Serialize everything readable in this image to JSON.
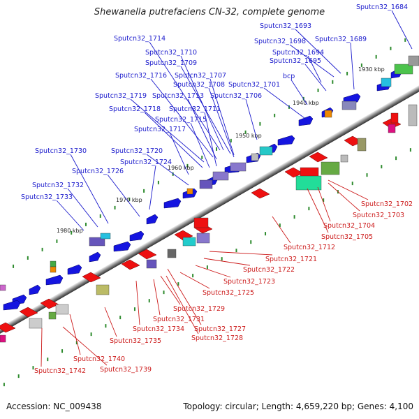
{
  "title": "Shewanella putrefaciens CN-32, complete genome",
  "footer": {
    "accession": "Accession: NC_009438",
    "summary": "Topology: circular; Length: 4,659,220 bp; Genes: 4,100"
  },
  "ticks": [
    "1930 kbp",
    "1940 kbp",
    "1950 kbp",
    "1960 kbp",
    "1970 kbp",
    "1980 kbp"
  ],
  "labels_forward": [
    "Sputcn32_1684",
    "Sputcn32_1693",
    "Sputcn32_1689",
    "Sputcn32_1698",
    "Sputcn32_1694",
    "Sputcn32_1695",
    "Sputcn32_1714",
    "Sputcn32_1710",
    "Sputcn32_1709",
    "Sputcn32_1716",
    "Sputcn32_1707",
    "Sputcn32_1708",
    "Sputcn32_1701",
    "Sputcn32_1719",
    "Sputcn32_1713",
    "Sputcn32_1706",
    "bcp",
    "Sputcn32_1718",
    "Sputcn32_1711",
    "Sputcn32_1715",
    "Sputcn32_1717",
    "Sputcn32_1730",
    "Sputcn32_1720",
    "Sputcn32_1724",
    "Sputcn32_1726",
    "Sputcn32_1732",
    "Sputcn32_1733"
  ],
  "labels_reverse": [
    "Sputcn32_1702",
    "Sputcn32_1703",
    "Sputcn32_1704",
    "Sputcn32_1705",
    "Sputcn32_1712",
    "Sputcn32_1721",
    "Sputcn32_1722",
    "Sputcn32_1723",
    "Sputcn32_1725",
    "Sputcn32_1729",
    "Sputcn32_1731",
    "Sputcn32_1727",
    "Sputcn32_1734",
    "Sputcn32_1728",
    "Sputcn32_1735",
    "Sputcn32_1740",
    "Sputcn32_1739",
    "Sputcn32_1742"
  ]
}
